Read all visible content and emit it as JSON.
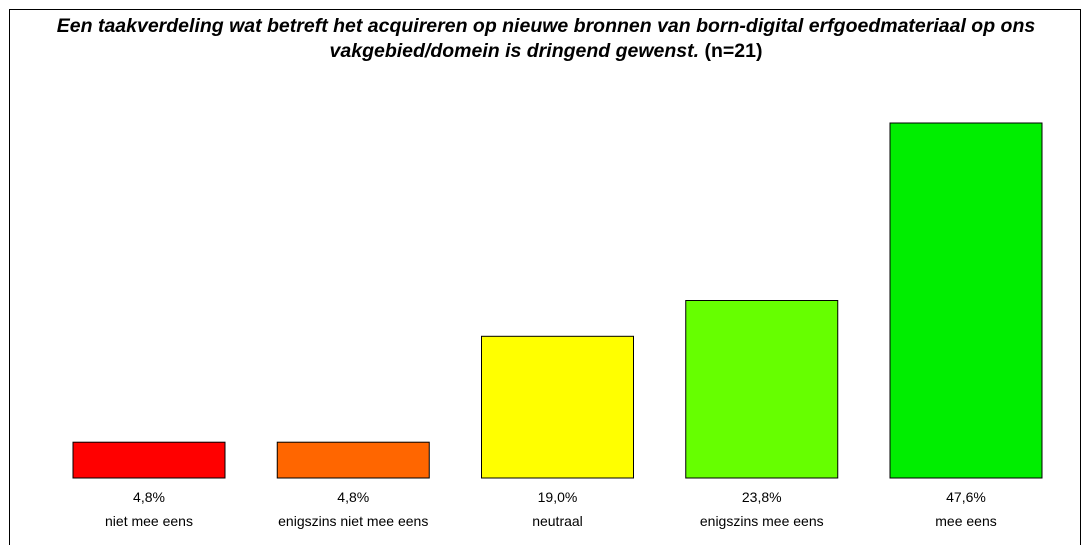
{
  "chart_data": {
    "type": "bar",
    "title": "Een taakverdeling wat betreft het acquireren op nieuwe bronnen van born-digital erfgoedmateriaal op ons vakgebied/domein is dringend gewenst.",
    "subtitle": "(n=21)",
    "categories": [
      "niet mee eens",
      "enigszins niet mee eens",
      "neutraal",
      "enigszins mee eens",
      "mee eens"
    ],
    "values": [
      4.8,
      4.8,
      19.0,
      23.8,
      47.6
    ],
    "value_labels": [
      "4,8%",
      "4,8%",
      "19,0%",
      "23,8%",
      "47,6%"
    ],
    "colors": [
      "#ff0000",
      "#ff6600",
      "#ffff00",
      "#66ff00",
      "#00ee00"
    ]
  }
}
